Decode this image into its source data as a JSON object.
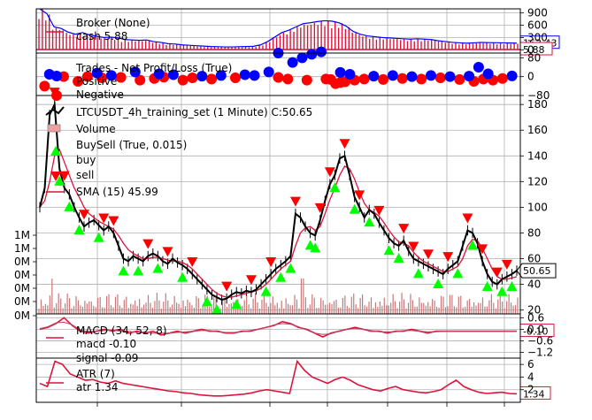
{
  "colors": {
    "broker": "#dc143c",
    "blue": "#0000ff",
    "red": "#ff0000",
    "buy": "#00ff00",
    "sell": "#ff0000",
    "price": "#000000",
    "volume_fill": "#f0a0a0",
    "grid": "#b0b0b0"
  },
  "chart_data": [
    {
      "type": "line",
      "panel": "broker",
      "legend": [
        "Broker (None)",
        "cash 5.88"
      ],
      "yticks": [
        "900",
        "600",
        "300",
        "0"
      ],
      "tick_values": [
        900,
        600,
        300,
        0
      ],
      "ylim": [
        -80,
        1000
      ],
      "series": [
        {
          "name": "cash",
          "last": 5.88,
          "last_label": "5.88"
        },
        {
          "name": "value",
          "last": 163.43,
          "last_label": "163.43"
        }
      ],
      "value": [
        1000,
        880,
        560,
        520,
        430,
        380,
        420,
        360,
        330,
        300,
        310,
        290,
        250,
        240,
        230,
        240,
        200,
        180,
        150,
        140,
        120,
        110,
        100,
        90,
        80,
        75,
        70,
        70,
        75,
        80,
        85,
        120,
        200,
        310,
        420,
        480,
        560,
        640,
        660,
        690,
        710,
        700,
        660,
        580,
        450,
        380,
        340,
        320,
        300,
        290,
        280,
        270,
        260,
        270,
        260,
        250,
        220,
        200,
        180,
        170,
        160,
        170,
        180,
        175,
        172,
        170,
        165,
        163.43
      ]
    },
    {
      "type": "scatter",
      "panel": "trades",
      "legend": [
        "Trades - Net Profit/Loss (True)",
        "Positive",
        "Negative"
      ],
      "yticks": [
        "80",
        "0",
        "−80"
      ],
      "tick_values": [
        80,
        0,
        -80
      ],
      "ylim": [
        -80,
        100
      ],
      "positive": [
        [
          0.02,
          10
        ],
        [
          0.12,
          15
        ],
        [
          0.15,
          5
        ],
        [
          0.2,
          20
        ],
        [
          0.25,
          12
        ],
        [
          0.28,
          8
        ],
        [
          0.34,
          2
        ],
        [
          0.38,
          5
        ],
        [
          0.43,
          8
        ],
        [
          0.45,
          5
        ],
        [
          0.48,
          20
        ],
        [
          0.5,
          100
        ],
        [
          0.53,
          60
        ],
        [
          0.55,
          80
        ],
        [
          0.57,
          95
        ],
        [
          0.59,
          105
        ],
        [
          0.63,
          18
        ],
        [
          0.65,
          10
        ],
        [
          0.7,
          2
        ],
        [
          0.74,
          5
        ],
        [
          0.78,
          0
        ],
        [
          0.82,
          5
        ],
        [
          0.86,
          0
        ],
        [
          0.9,
          2
        ],
        [
          0.92,
          40
        ],
        [
          0.94,
          12
        ],
        [
          0.99,
          3
        ]
      ],
      "negative": [
        [
          0.01,
          -40
        ],
        [
          0.05,
          0
        ],
        [
          0.08,
          -20
        ],
        [
          0.1,
          0
        ],
        [
          0.13,
          -5
        ],
        [
          0.17,
          -3
        ],
        [
          0.21,
          -15
        ],
        [
          0.24,
          -8
        ],
        [
          0.26,
          -2
        ],
        [
          0.3,
          -15
        ],
        [
          0.32,
          -5
        ],
        [
          0.36,
          -10
        ],
        [
          0.41,
          -5
        ],
        [
          0.5,
          -3
        ],
        [
          0.52,
          -10
        ],
        [
          0.56,
          -15
        ],
        [
          0.6,
          -10
        ],
        [
          0.61,
          -12
        ],
        [
          0.62,
          -30
        ],
        [
          0.63,
          -25
        ],
        [
          0.64,
          -22
        ],
        [
          0.66,
          -15
        ],
        [
          0.68,
          -10
        ],
        [
          0.72,
          -12
        ],
        [
          0.76,
          -8
        ],
        [
          0.8,
          -10
        ],
        [
          0.84,
          -5
        ],
        [
          0.88,
          -12
        ],
        [
          0.91,
          -20
        ],
        [
          0.93,
          -10
        ],
        [
          0.95,
          -15
        ],
        [
          0.97,
          -8
        ]
      ]
    },
    {
      "type": "line",
      "panel": "price",
      "legend": [
        "LTCUSDT_4h_training_set (1 Minute) C:50.65",
        "Volume",
        "BuySell (True, 0.015)",
        "buy",
        "sell",
        "SMA (15) 45.99"
      ],
      "yticks": [
        "180",
        "160",
        "140",
        "120",
        "100",
        "80",
        "60",
        "40",
        "20"
      ],
      "tick_values": [
        180,
        160,
        140,
        120,
        100,
        80,
        60,
        40,
        20
      ],
      "ylim": [
        17,
        187
      ],
      "volume_yticks": [
        "1M",
        "1M",
        "0M",
        "0M",
        "0M",
        "0M",
        "0M"
      ],
      "last_price": 50.65,
      "last_price_label": "50.65",
      "sma_last": 45.99,
      "close": [
        100,
        115,
        172,
        180,
        130,
        115,
        110,
        100,
        92,
        85,
        88,
        90,
        86,
        82,
        85,
        80,
        70,
        60,
        58,
        62,
        60,
        58,
        62,
        64,
        62,
        58,
        56,
        60,
        57,
        55,
        52,
        48,
        44,
        40,
        36,
        32,
        30,
        28,
        29,
        32,
        34,
        33,
        35,
        34,
        36,
        40,
        44,
        48,
        52,
        55,
        58,
        62,
        95,
        92,
        85,
        80,
        78,
        90,
        105,
        118,
        125,
        138,
        140,
        125,
        108,
        100,
        92,
        98,
        95,
        88,
        82,
        76,
        72,
        70,
        74,
        66,
        60,
        58,
        56,
        54,
        52,
        50,
        48,
        52,
        55,
        58,
        70,
        82,
        80,
        72,
        58,
        48,
        42,
        40,
        44,
        46,
        48,
        50.65
      ],
      "sma": [
        100,
        105,
        120,
        140,
        145,
        135,
        125,
        115,
        108,
        100,
        95,
        92,
        89,
        87,
        85,
        83,
        78,
        72,
        67,
        64,
        62,
        60,
        60,
        61,
        61,
        60,
        59,
        58,
        58,
        57,
        55,
        52,
        48,
        44,
        40,
        36,
        33,
        31,
        30,
        30,
        31,
        32,
        33,
        34,
        35,
        37,
        40,
        44,
        48,
        52,
        55,
        58,
        70,
        80,
        84,
        85,
        82,
        85,
        95,
        106,
        115,
        125,
        132,
        130,
        122,
        112,
        103,
        98,
        96,
        93,
        88,
        82,
        77,
        73,
        72,
        70,
        65,
        61,
        58,
        56,
        54,
        52,
        50,
        50,
        52,
        54,
        60,
        70,
        75,
        74,
        68,
        60,
        52,
        46,
        44,
        44,
        45,
        45.99
      ],
      "buy_idx": [
        4,
        6,
        8,
        12,
        17,
        20,
        24,
        29,
        34,
        36,
        40,
        46,
        49,
        51,
        55,
        56,
        60,
        64,
        67,
        71,
        73,
        77,
        81,
        85,
        88,
        91,
        94,
        96
      ],
      "sell_idx": [
        3,
        5,
        9,
        13,
        15,
        22,
        26,
        31,
        38,
        43,
        47,
        52,
        57,
        59,
        62,
        65,
        69,
        74,
        76,
        79,
        83,
        87,
        90,
        93,
        95
      ]
    },
    {
      "type": "line",
      "panel": "macd",
      "legend": [
        "MACD (34, 52, 8)",
        "macd -0.10",
        "signal -0.09"
      ],
      "yticks": [
        "0.6",
        "0.0",
        "−0.6",
        "−1.2"
      ],
      "tick_values": [
        0.6,
        0,
        -0.6,
        -1.2
      ],
      "ylim": [
        -1.5,
        0.8
      ],
      "last_label": "-0.10",
      "macd": [
        0.0,
        0.1,
        0.3,
        0.6,
        0.2,
        -0.1,
        -0.2,
        -0.1,
        0.0,
        -0.1,
        0.0,
        -0.2,
        -0.1,
        -0.2,
        -0.1,
        -0.3,
        -0.2,
        -0.1,
        -0.2,
        -0.1,
        0.0,
        -0.1,
        -0.1,
        -0.2,
        -0.2,
        -0.1,
        -0.1,
        0.0,
        0.1,
        0.2,
        0.4,
        0.3,
        0.1,
        0.0,
        -0.2,
        -0.4,
        -0.2,
        -0.1,
        0.0,
        0.1,
        0.0,
        -0.1,
        -0.1,
        -0.2,
        -0.1,
        -0.1,
        0.0,
        -0.1,
        -0.2,
        -0.1,
        -0.1,
        -0.1,
        -0.1,
        -0.1,
        -0.1,
        -0.1,
        -0.1,
        -0.1,
        -0.1,
        -0.1
      ]
    },
    {
      "type": "line",
      "panel": "atr",
      "legend": [
        "ATR (7)",
        "atr 1.34"
      ],
      "yticks": [
        "6",
        "4",
        "2"
      ],
      "tick_values": [
        6,
        4,
        2
      ],
      "ylim": [
        0,
        7
      ],
      "last_label": "1.34",
      "atr": [
        3.0,
        2.5,
        6.5,
        6.0,
        4.5,
        4.0,
        3.5,
        3.6,
        3.2,
        3.0,
        3.4,
        3.0,
        2.8,
        2.6,
        2.4,
        2.2,
        2.0,
        1.8,
        1.7,
        1.5,
        1.4,
        1.2,
        1.1,
        1.0,
        1.0,
        1.1,
        1.2,
        1.3,
        1.5,
        1.8,
        2.0,
        1.8,
        1.6,
        1.4,
        6.5,
        5.0,
        4.0,
        3.5,
        3.0,
        3.6,
        4.0,
        3.5,
        2.8,
        2.4,
        2.0,
        1.8,
        2.2,
        2.5,
        2.0,
        1.8,
        1.6,
        1.5,
        1.7,
        2.0,
        2.8,
        3.5,
        2.5,
        2.0,
        1.6,
        1.4,
        1.5,
        1.6,
        1.4,
        1.34
      ]
    }
  ]
}
